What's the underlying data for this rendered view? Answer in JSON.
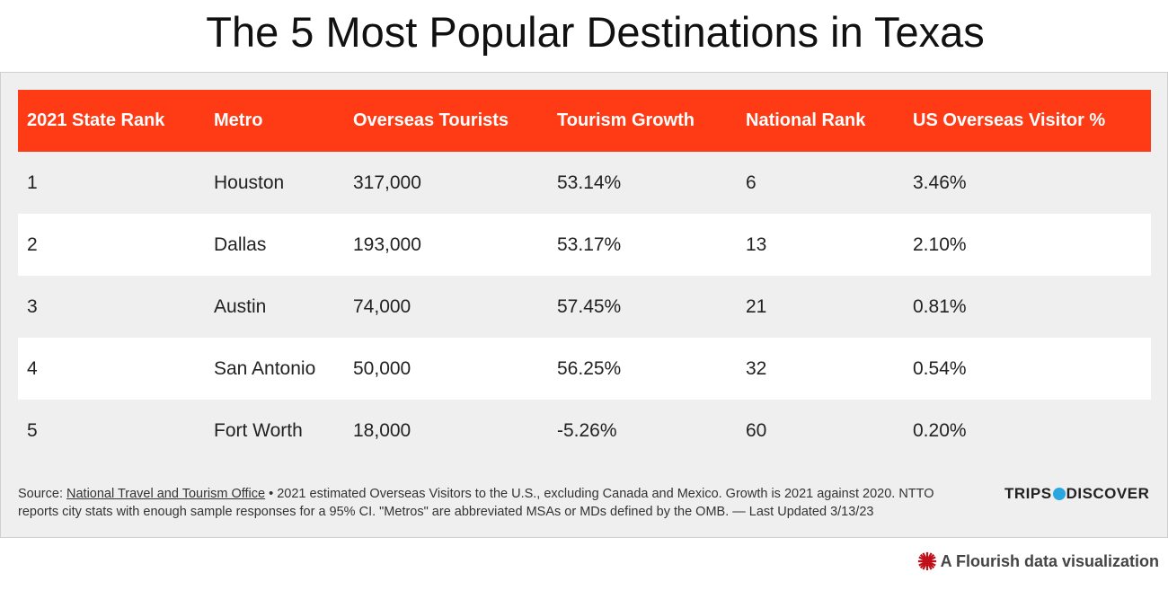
{
  "title": "The 5 Most Popular Destinations in Texas",
  "table": {
    "headers": [
      "2021 State Rank",
      "Metro",
      "Overseas Tourists",
      "Tourism Growth",
      "National Rank",
      "US Overseas Visitor %"
    ],
    "rows": [
      [
        "1",
        "Houston",
        "317,000",
        "53.14%",
        "6",
        "3.46%"
      ],
      [
        "2",
        "Dallas",
        "193,000",
        "53.17%",
        "13",
        "2.10%"
      ],
      [
        "3",
        "Austin",
        "74,000",
        "57.45%",
        "21",
        "0.81%"
      ],
      [
        "4",
        "San Antonio",
        "50,000",
        "56.25%",
        "32",
        "0.54%"
      ],
      [
        "5",
        "Fort Worth",
        "18,000",
        "-5.26%",
        "60",
        "0.20%"
      ]
    ]
  },
  "footer": {
    "source_prefix": "Source: ",
    "source_link": "National Travel and Tourism Office",
    "note": " • 2021 estimated Overseas Visitors to the U.S., excluding Canada and Mexico. Growth is 2021 against 2020. NTTO reports city stats with enough sample responses for a 95% CI. \"Metros\" are abbreviated MSAs or MDs defined by the OMB. — Last Updated 3/13/23",
    "brand_left": "TRIPS",
    "brand_right": "DISCOVER"
  },
  "flourish_label": "A Flourish data visualization",
  "colors": {
    "header": "#fe3b15",
    "panel": "#efefef"
  }
}
